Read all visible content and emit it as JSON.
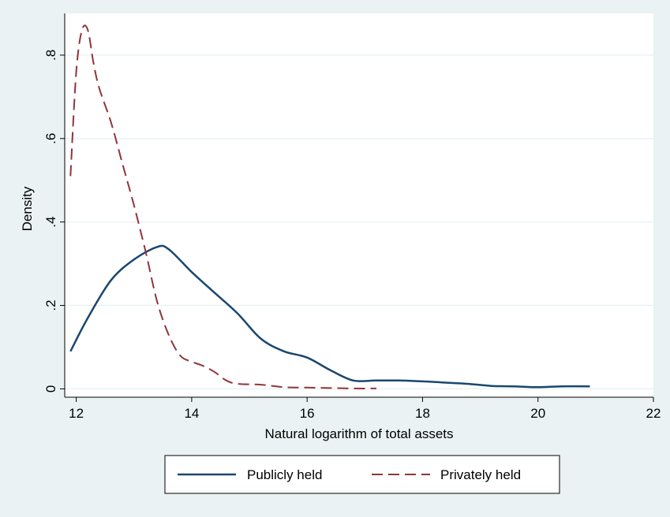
{
  "chart_data": {
    "type": "line",
    "xlabel": "Natural logarithm of total assets",
    "ylabel": "Density",
    "xlim": [
      11.8,
      22
    ],
    "ylim": [
      -0.02,
      0.9
    ],
    "xticks": [
      12,
      14,
      16,
      18,
      20,
      22
    ],
    "xtick_labels": [
      "12",
      "14",
      "16",
      "18",
      "20",
      "22"
    ],
    "yticks": [
      0,
      0.2,
      0.4,
      0.6,
      0.8
    ],
    "ytick_labels": [
      "0",
      ".2",
      ".4",
      ".6",
      ".8"
    ],
    "grid": true,
    "legend_position": "bottom",
    "background_color": "#eaf2f3",
    "plot_background_color": "#ffffff",
    "series": [
      {
        "name": "Publicly held",
        "color": "#1a476f",
        "style": "solid",
        "x": [
          11.9,
          12.2,
          12.6,
          13.0,
          13.4,
          13.6,
          14.0,
          14.4,
          14.8,
          15.2,
          15.6,
          16.0,
          16.4,
          16.8,
          17.2,
          17.6,
          18.0,
          18.4,
          18.8,
          19.2,
          19.6,
          20.0,
          20.4,
          20.9
        ],
        "y": [
          0.09,
          0.17,
          0.26,
          0.31,
          0.34,
          0.335,
          0.28,
          0.23,
          0.18,
          0.12,
          0.09,
          0.075,
          0.045,
          0.02,
          0.02,
          0.02,
          0.018,
          0.015,
          0.012,
          0.007,
          0.006,
          0.004,
          0.006,
          0.006
        ]
      },
      {
        "name": "Privately held",
        "color": "#90353b",
        "style": "dashed",
        "x": [
          11.9,
          12.0,
          12.1,
          12.2,
          12.3,
          12.4,
          12.6,
          12.8,
          13.0,
          13.2,
          13.4,
          13.6,
          13.8,
          14.0,
          14.2,
          14.4,
          14.6,
          14.8,
          15.2,
          15.6,
          16.0,
          16.4,
          16.8,
          17.2
        ],
        "y": [
          0.51,
          0.76,
          0.86,
          0.86,
          0.78,
          0.72,
          0.64,
          0.54,
          0.44,
          0.33,
          0.21,
          0.13,
          0.08,
          0.065,
          0.055,
          0.04,
          0.02,
          0.012,
          0.01,
          0.004,
          0.003,
          0.002,
          0.001,
          0.001
        ]
      }
    ]
  }
}
